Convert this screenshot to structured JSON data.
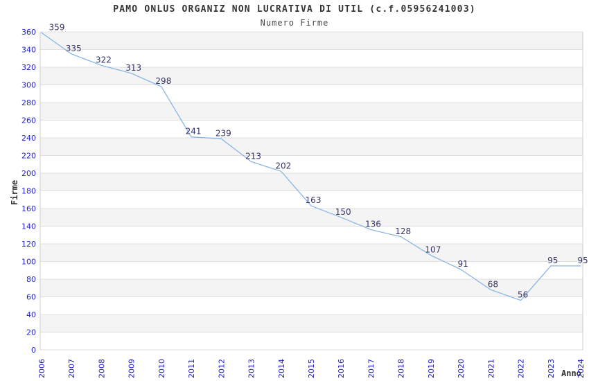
{
  "chart_data": {
    "type": "line",
    "title": "PAMO ONLUS ORGANIZ NON LUCRATIVA DI UTIL (c.f.05956241003)",
    "subtitle": "Numero Firme",
    "xlabel": "Anno",
    "ylabel": "Firme",
    "categories": [
      "2006",
      "2007",
      "2008",
      "2009",
      "2010",
      "2011",
      "2012",
      "2013",
      "2014",
      "2015",
      "2016",
      "2017",
      "2018",
      "2019",
      "2020",
      "2021",
      "2022",
      "2023",
      "2024"
    ],
    "values": [
      359,
      335,
      322,
      313,
      298,
      241,
      239,
      213,
      202,
      163,
      150,
      136,
      128,
      107,
      91,
      68,
      56,
      95,
      95
    ],
    "ylim": [
      0,
      360
    ],
    "ytick_step": 20,
    "yticks": [
      0,
      20,
      40,
      60,
      80,
      100,
      120,
      140,
      160,
      180,
      200,
      220,
      240,
      260,
      280,
      300,
      320,
      340,
      360
    ],
    "grid": "horizontal gridlines with alternating shaded bands",
    "legend": "none",
    "data_labels": "shown above each point",
    "colors": {
      "line": "#8ab6e6",
      "data_label": "#333366",
      "tick_label": "#2222cc",
      "band_fill": "#f4f4f4",
      "gridline": "#e0e0e0",
      "plot_border": "#cccccc",
      "title": "#333333",
      "subtitle": "#4a4a4a",
      "axis_title": "#333333",
      "background": "#ffffff"
    }
  }
}
